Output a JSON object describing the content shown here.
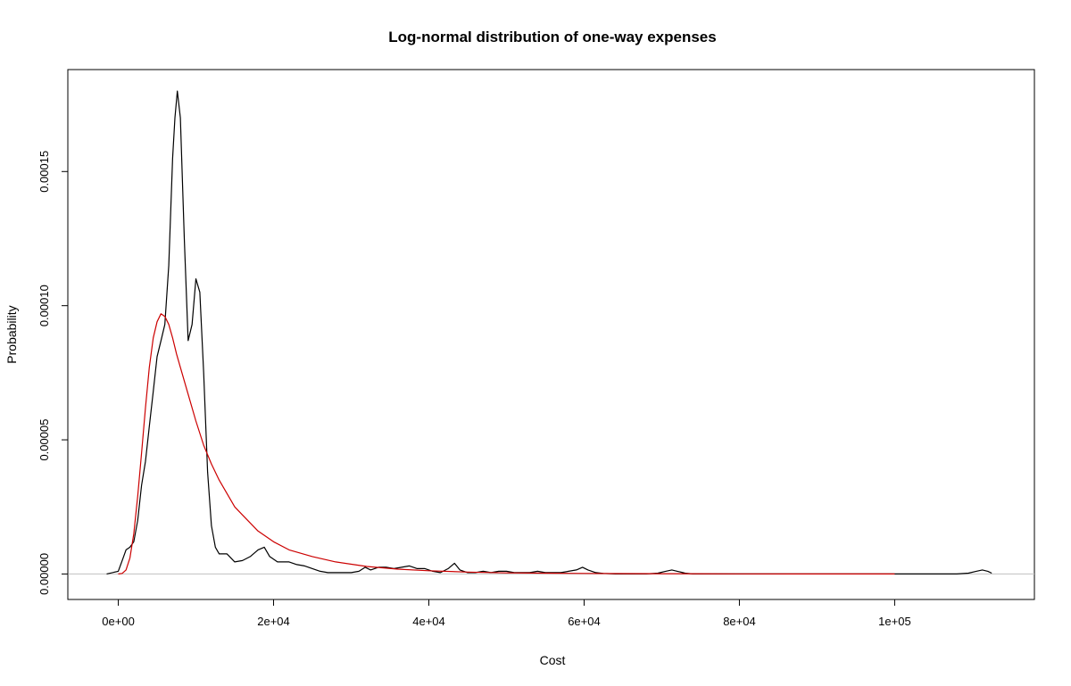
{
  "chart_data": {
    "type": "line",
    "title": "Log-normal distribution of one-way expenses",
    "xlabel": "Cost",
    "ylabel": "Probability",
    "xlim": [
      -6500,
      118000
    ],
    "ylim": [
      -9.5e-06,
      0.000188
    ],
    "x_ticks": [
      0,
      20000,
      40000,
      60000,
      80000,
      100000
    ],
    "x_tick_labels": [
      "0e+00",
      "2e+04",
      "4e+04",
      "6e+04",
      "8e+04",
      "1e+05"
    ],
    "y_ticks": [
      0,
      5e-05,
      0.0001,
      0.00015
    ],
    "y_tick_labels": [
      "0.00000",
      "0.00005",
      "0.00010",
      "0.00015"
    ],
    "baseline": {
      "y": 0,
      "color": "#c0c0c0"
    },
    "grid": false,
    "series": [
      {
        "color": "#000000",
        "x": [
          -1500,
          0,
          500,
          1000,
          1500,
          2000,
          2500,
          3000,
          3500,
          4000,
          4500,
          5000,
          5500,
          6000,
          6500,
          7000,
          7300,
          7600,
          8000,
          8500,
          9000,
          9500,
          10000,
          10500,
          11000,
          11500,
          12000,
          12500,
          13000,
          14000,
          15000,
          16000,
          17000,
          18000,
          18800,
          19500,
          20500,
          22000,
          23000,
          24000,
          25000,
          26000,
          27000,
          28000,
          29000,
          30000,
          31000,
          31800,
          32500,
          33500,
          34500,
          35500,
          36500,
          37500,
          38500,
          39500,
          40500,
          41500,
          42500,
          43300,
          44000,
          45000,
          46000,
          47000,
          48000,
          49000,
          50000,
          51000,
          52000,
          53000,
          54000,
          55000,
          56000,
          57000,
          58000,
          59000,
          59800,
          60500,
          61500,
          62500,
          64000,
          66000,
          68000,
          69500,
          70500,
          71300,
          72000,
          73000,
          74000,
          76000,
          80000,
          90000,
          100000,
          108000,
          109500,
          110500,
          111300,
          112000,
          112500
        ],
        "y": [
          0,
          1e-06,
          5e-06,
          9e-06,
          1e-05,
          1.2e-05,
          2e-05,
          3.3e-05,
          4.2e-05,
          5.5e-05,
          6.8e-05,
          8.1e-05,
          8.7e-05,
          9.3e-05,
          0.000115,
          0.000155,
          0.00017,
          0.00018,
          0.00017,
          0.000125,
          8.7e-05,
          9.3e-05,
          0.00011,
          0.000105,
          7.5e-05,
          3.8e-05,
          1.8e-05,
          1e-05,
          7.5e-06,
          7.5e-06,
          4.5e-06,
          5e-06,
          6.5e-06,
          9e-06,
          1e-05,
          6.5e-06,
          4.5e-06,
          4.5e-06,
          3.5e-06,
          3e-06,
          2e-06,
          1e-06,
          5e-07,
          5e-07,
          5e-07,
          5e-07,
          1e-06,
          2.5e-06,
          1.5e-06,
          2.5e-06,
          2.5e-06,
          2e-06,
          2.5e-06,
          3e-06,
          2e-06,
          2e-06,
          1e-06,
          5e-07,
          2e-06,
          4e-06,
          1.5e-06,
          5e-07,
          5e-07,
          1e-06,
          5e-07,
          1e-06,
          1e-06,
          5e-07,
          5e-07,
          5e-07,
          1e-06,
          5e-07,
          5e-07,
          5e-07,
          1e-06,
          1.5e-06,
          2.5e-06,
          1.5e-06,
          5e-07,
          2e-07,
          0,
          0,
          0,
          3e-07,
          1e-06,
          1.5e-06,
          1e-06,
          3e-07,
          0,
          0,
          0,
          0,
          0,
          0,
          3e-07,
          1e-06,
          1.5e-06,
          1e-06,
          3e-07
        ]
      },
      {
        "color": "#cc0000",
        "x": [
          0,
          500,
          1000,
          1500,
          2000,
          2500,
          3000,
          3500,
          4000,
          4500,
          5000,
          5500,
          6000,
          6500,
          7000,
          7500,
          8000,
          9000,
          10000,
          11000,
          12000,
          13000,
          14000,
          15000,
          16000,
          18000,
          20000,
          22000,
          25000,
          28000,
          32000,
          36000,
          40000,
          45000,
          50000,
          55000,
          60000,
          65000,
          70000,
          80000,
          90000,
          100000
        ],
        "y": [
          0,
          2e-07,
          1.5e-06,
          6e-06,
          1.5e-05,
          2.9e-05,
          4.5e-05,
          6.2e-05,
          7.7e-05,
          8.8e-05,
          9.4e-05,
          9.7e-05,
          9.6e-05,
          9.3e-05,
          8.8e-05,
          8.2e-05,
          7.7e-05,
          6.7e-05,
          5.7e-05,
          4.8e-05,
          4.1e-05,
          3.5e-05,
          3e-05,
          2.5e-05,
          2.2e-05,
          1.6e-05,
          1.2e-05,
          9e-06,
          6.5e-06,
          4.5e-06,
          2.8e-06,
          1.8e-06,
          1.2e-06,
          7e-07,
          4e-07,
          3e-07,
          2e-07,
          1.5e-07,
          1e-07,
          5e-08,
          2e-08,
          1e-08
        ]
      }
    ]
  }
}
